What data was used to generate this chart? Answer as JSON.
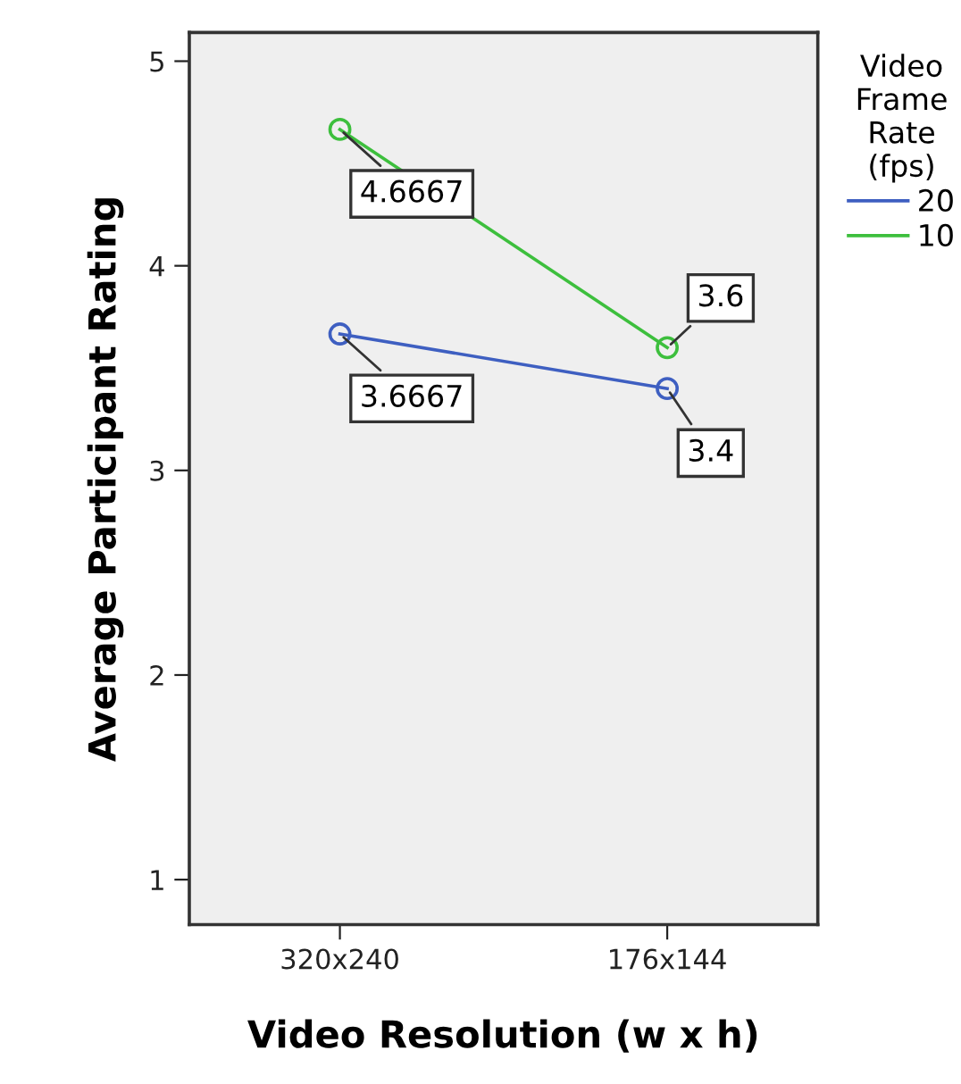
{
  "chart_data": {
    "type": "line",
    "xlabel": "Video Resolution (w x h)",
    "ylabel": "Average Participant Rating",
    "legend_title": "Video Frame Rate (fps)",
    "categories": [
      "320x240",
      "176x144"
    ],
    "series": [
      {
        "name": "20",
        "color": "#3e5fc1",
        "values": [
          3.6667,
          3.4
        ]
      },
      {
        "name": "10",
        "color": "#3dbf3d",
        "values": [
          4.6667,
          3.6
        ]
      }
    ],
    "ylim": [
      0.78,
      5.14
    ],
    "yticks": [
      1,
      2,
      3,
      4,
      5
    ],
    "marker": "circle",
    "data_labels": true,
    "legend": "right",
    "grid": false
  }
}
